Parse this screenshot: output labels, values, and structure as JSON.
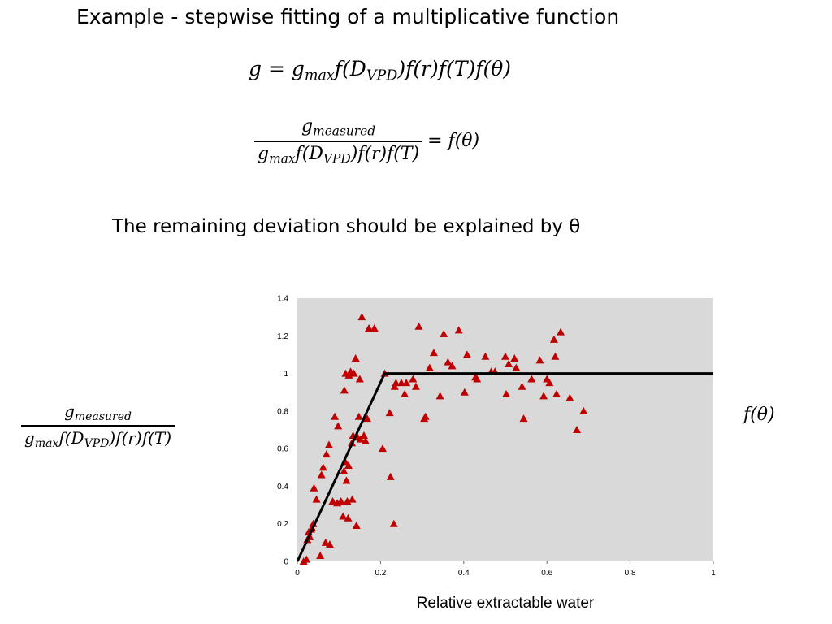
{
  "slide": {
    "title": "Example - stepwise fitting of a multiplicative function",
    "remark": "The remaining deviation should be explained by θ"
  },
  "equations": {
    "model": {
      "g": "g",
      "eq": "=",
      "gmax": "g",
      "gmax_sub": "max",
      "fD": "f(D",
      "fD_sub": "VPD",
      "rest": ")f(r)f(T)f(θ)"
    },
    "ratio": {
      "num": "g",
      "num_sub": "measured",
      "den_g": "g",
      "den_sub": "max",
      "den_fD": "f(D",
      "den_fD_sub": "VPD",
      "den_rest": ")f(r)f(T)",
      "rhs": "= f(θ)"
    }
  },
  "chart_data": {
    "type": "scatter",
    "xlabel": "Relative extractable water",
    "y_axis_label_formula": {
      "num": "g",
      "num_sub": "measured",
      "den_g": "g",
      "den_sub": "max",
      "den_fD": "f(D",
      "den_fD_sub": "VPD",
      "den_rest": ")f(r)f(T)"
    },
    "series_label": "f(θ)",
    "xlim": [
      0,
      1
    ],
    "ylim": [
      0,
      1.4
    ],
    "x_ticks": [
      "0",
      "0.2",
      "0.4",
      "0.6",
      "0.8",
      "1"
    ],
    "y_ticks": [
      "0",
      "0.2",
      "0.4",
      "0.6",
      "0.8",
      "1",
      "1.2",
      "1.4"
    ],
    "plot_background": "#d9d9d9",
    "marker_color": "#c00000",
    "line_color": "#000000",
    "grid": false,
    "fit_line": {
      "x": [
        0,
        0.21,
        1.0
      ],
      "y": [
        0,
        1.0,
        1.0
      ]
    },
    "points": [
      {
        "x": 0.015,
        "y": 0.0
      },
      {
        "x": 0.022,
        "y": 0.01
      },
      {
        "x": 0.024,
        "y": 0.115
      },
      {
        "x": 0.027,
        "y": 0.155
      },
      {
        "x": 0.03,
        "y": 0.13
      },
      {
        "x": 0.033,
        "y": 0.17
      },
      {
        "x": 0.035,
        "y": 0.18
      },
      {
        "x": 0.038,
        "y": 0.2
      },
      {
        "x": 0.04,
        "y": 0.39
      },
      {
        "x": 0.046,
        "y": 0.33
      },
      {
        "x": 0.055,
        "y": 0.03
      },
      {
        "x": 0.058,
        "y": 0.46
      },
      {
        "x": 0.062,
        "y": 0.5
      },
      {
        "x": 0.068,
        "y": 0.1
      },
      {
        "x": 0.07,
        "y": 0.57
      },
      {
        "x": 0.076,
        "y": 0.62
      },
      {
        "x": 0.078,
        "y": 0.09
      },
      {
        "x": 0.085,
        "y": 0.32
      },
      {
        "x": 0.09,
        "y": 0.77
      },
      {
        "x": 0.096,
        "y": 0.31
      },
      {
        "x": 0.098,
        "y": 0.72
      },
      {
        "x": 0.105,
        "y": 0.32
      },
      {
        "x": 0.11,
        "y": 0.24
      },
      {
        "x": 0.112,
        "y": 0.48
      },
      {
        "x": 0.113,
        "y": 0.91
      },
      {
        "x": 0.115,
        "y": 0.53
      },
      {
        "x": 0.116,
        "y": 1.0
      },
      {
        "x": 0.118,
        "y": 0.43
      },
      {
        "x": 0.12,
        "y": 0.32
      },
      {
        "x": 0.122,
        "y": 0.23
      },
      {
        "x": 0.123,
        "y": 0.51
      },
      {
        "x": 0.124,
        "y": 0.99
      },
      {
        "x": 0.128,
        "y": 1.01
      },
      {
        "x": 0.131,
        "y": 0.63
      },
      {
        "x": 0.132,
        "y": 0.33
      },
      {
        "x": 0.134,
        "y": 0.67
      },
      {
        "x": 0.136,
        "y": 1.0
      },
      {
        "x": 0.14,
        "y": 1.08
      },
      {
        "x": 0.142,
        "y": 0.19
      },
      {
        "x": 0.145,
        "y": 0.66
      },
      {
        "x": 0.148,
        "y": 0.77
      },
      {
        "x": 0.15,
        "y": 0.97
      },
      {
        "x": 0.152,
        "y": 0.65
      },
      {
        "x": 0.155,
        "y": 1.3
      },
      {
        "x": 0.16,
        "y": 0.67
      },
      {
        "x": 0.164,
        "y": 0.64
      },
      {
        "x": 0.168,
        "y": 0.76
      },
      {
        "x": 0.172,
        "y": 1.24
      },
      {
        "x": 0.185,
        "y": 1.24
      },
      {
        "x": 0.205,
        "y": 0.6
      },
      {
        "x": 0.21,
        "y": 1.0
      },
      {
        "x": 0.222,
        "y": 0.79
      },
      {
        "x": 0.224,
        "y": 0.45
      },
      {
        "x": 0.232,
        "y": 0.2
      },
      {
        "x": 0.234,
        "y": 0.93
      },
      {
        "x": 0.237,
        "y": 0.95
      },
      {
        "x": 0.25,
        "y": 0.95
      },
      {
        "x": 0.258,
        "y": 0.89
      },
      {
        "x": 0.262,
        "y": 0.95
      },
      {
        "x": 0.278,
        "y": 0.97
      },
      {
        "x": 0.285,
        "y": 0.93
      },
      {
        "x": 0.292,
        "y": 1.25
      },
      {
        "x": 0.305,
        "y": 0.76
      },
      {
        "x": 0.308,
        "y": 0.77
      },
      {
        "x": 0.318,
        "y": 1.03
      },
      {
        "x": 0.328,
        "y": 1.11
      },
      {
        "x": 0.343,
        "y": 0.88
      },
      {
        "x": 0.352,
        "y": 1.21
      },
      {
        "x": 0.362,
        "y": 1.06
      },
      {
        "x": 0.372,
        "y": 1.04
      },
      {
        "x": 0.388,
        "y": 1.23
      },
      {
        "x": 0.402,
        "y": 0.9
      },
      {
        "x": 0.408,
        "y": 1.1
      },
      {
        "x": 0.428,
        "y": 0.98
      },
      {
        "x": 0.432,
        "y": 0.97
      },
      {
        "x": 0.452,
        "y": 1.09
      },
      {
        "x": 0.466,
        "y": 1.01
      },
      {
        "x": 0.475,
        "y": 1.01
      },
      {
        "x": 0.5,
        "y": 1.09
      },
      {
        "x": 0.502,
        "y": 0.89
      },
      {
        "x": 0.508,
        "y": 1.05
      },
      {
        "x": 0.522,
        "y": 1.08
      },
      {
        "x": 0.526,
        "y": 1.03
      },
      {
        "x": 0.54,
        "y": 0.93
      },
      {
        "x": 0.544,
        "y": 0.76
      },
      {
        "x": 0.563,
        "y": 0.97
      },
      {
        "x": 0.583,
        "y": 1.07
      },
      {
        "x": 0.592,
        "y": 0.88
      },
      {
        "x": 0.6,
        "y": 0.97
      },
      {
        "x": 0.606,
        "y": 0.95
      },
      {
        "x": 0.617,
        "y": 1.18
      },
      {
        "x": 0.62,
        "y": 1.09
      },
      {
        "x": 0.623,
        "y": 0.89
      },
      {
        "x": 0.633,
        "y": 1.22
      },
      {
        "x": 0.655,
        "y": 0.87
      },
      {
        "x": 0.672,
        "y": 0.7
      },
      {
        "x": 0.688,
        "y": 0.8
      }
    ]
  }
}
